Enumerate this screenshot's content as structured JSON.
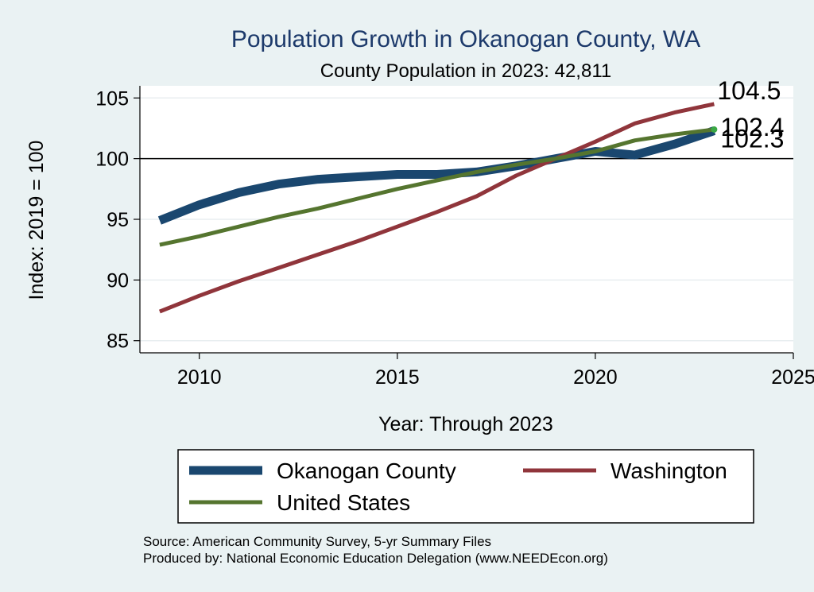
{
  "chart_data": {
    "type": "line",
    "title": "Population Growth in Okanogan County, WA",
    "subtitle": "County Population in 2023: 42,811",
    "xlabel": "Year: Through 2023",
    "ylabel": "Index: 2019 = 100",
    "xlim": [
      2008.5,
      2025
    ],
    "ylim": [
      84,
      106
    ],
    "x_ticks": [
      2010,
      2015,
      2020,
      2025
    ],
    "y_ticks": [
      85,
      90,
      95,
      100,
      105
    ],
    "reference_line": 100,
    "grid": true,
    "legend_position": "bottom",
    "x": [
      2009,
      2010,
      2011,
      2012,
      2013,
      2014,
      2015,
      2016,
      2017,
      2018,
      2019,
      2020,
      2021,
      2022,
      2023
    ],
    "series": [
      {
        "name": "Okanogan  County",
        "color": "#1a476f",
        "values": [
          94.9,
          96.2,
          97.2,
          97.9,
          98.3,
          98.5,
          98.7,
          98.7,
          98.9,
          99.4,
          100.0,
          100.6,
          100.3,
          101.2,
          102.3
        ],
        "end_label": "102.3"
      },
      {
        "name": "Washington",
        "color": "#90353b",
        "values": [
          87.4,
          88.7,
          89.9,
          91.0,
          92.1,
          93.2,
          94.4,
          95.6,
          96.9,
          98.6,
          100.0,
          101.4,
          102.9,
          103.8,
          104.5
        ],
        "end_label": "104.5"
      },
      {
        "name": "United States",
        "color": "#55752f",
        "values": [
          92.9,
          93.6,
          94.4,
          95.2,
          95.9,
          96.7,
          97.5,
          98.2,
          98.9,
          99.5,
          100.0,
          100.6,
          101.5,
          102.0,
          102.4
        ],
        "end_label": "102.4"
      }
    ]
  },
  "source_line": "Source: American Community Survey, 5-yr Summary Files",
  "produced_line": "Produced by: National Economic Education Delegation (www.NEEDEcon.org)"
}
